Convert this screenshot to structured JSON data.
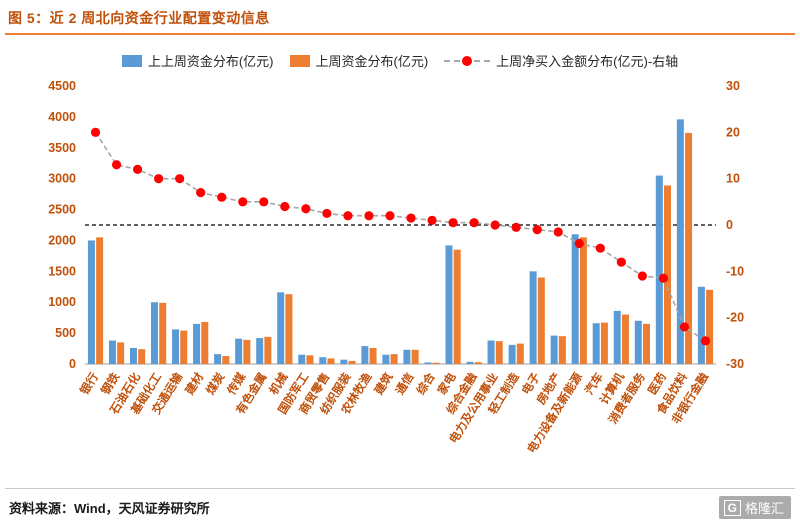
{
  "figure": {
    "title": "图 5：近 2 周北向资金行业配置变动信息",
    "source": "资料来源：Wind，天风证券研究所",
    "logo_text": "格隆汇",
    "logo_icon": "G"
  },
  "colors": {
    "title": "#C0500A",
    "rule": "#ED7D31",
    "bar_week_before_last": "#5B9BD5",
    "bar_last_week": "#ED7D31",
    "net_buy_marker": "#FF0000",
    "net_buy_line": "#A6A6A6",
    "axis_text": "#C0500A",
    "zero_line": "#000000"
  },
  "chart_data": {
    "type": "bar",
    "title": "近 2 周北向资金行业配置变动信息",
    "categories": [
      "银行",
      "钢铁",
      "石油石化",
      "基础化工",
      "交通运输",
      "建材",
      "煤炭",
      "传媒",
      "有色金属",
      "机械",
      "国防军工",
      "商贸零售",
      "纺织服装",
      "农林牧渔",
      "建筑",
      "通信",
      "综合",
      "家电",
      "综合金融",
      "电力及公用事业",
      "轻工制造",
      "电子",
      "房地产",
      "电力设备及新能源",
      "汽车",
      "计算机",
      "消费者服务",
      "医药",
      "食品饮料",
      "非银行金融"
    ],
    "series": [
      {
        "name": "上上周资金分布(亿元)",
        "type": "bar",
        "axis": "left",
        "color": "#5B9BD5",
        "values": [
          2000,
          380,
          260,
          1000,
          560,
          650,
          160,
          410,
          420,
          1160,
          150,
          110,
          70,
          290,
          150,
          230,
          25,
          1920,
          35,
          380,
          310,
          1500,
          460,
          2100,
          660,
          860,
          700,
          3050,
          3960,
          1250
        ]
      },
      {
        "name": "上周资金分布(亿元)",
        "type": "bar",
        "axis": "left",
        "color": "#ED7D31",
        "values": [
          2050,
          350,
          240,
          990,
          540,
          680,
          130,
          390,
          440,
          1130,
          140,
          90,
          50,
          260,
          160,
          230,
          20,
          1850,
          30,
          370,
          330,
          1400,
          450,
          2050,
          670,
          800,
          650,
          2890,
          3740,
          1200
        ]
      },
      {
        "name": "上周净买入金额分布(亿元)-右轴",
        "type": "line",
        "axis": "right",
        "marker_color": "#FF0000",
        "line_color": "#A6A6A6",
        "values": [
          20,
          13,
          12,
          10,
          10,
          7,
          6,
          5,
          5,
          4,
          3.5,
          2.5,
          2,
          2,
          2,
          1.5,
          1,
          0.5,
          0.5,
          0,
          -0.5,
          -1,
          -1.5,
          -4,
          -5,
          -8,
          -11,
          -11.5,
          -22,
          -25
        ]
      }
    ],
    "left_axis": {
      "min": 0,
      "max": 4500,
      "step": 500
    },
    "right_axis": {
      "min": -30,
      "max": 30,
      "step": 10
    },
    "zero_reference_line": true,
    "gridlines": false,
    "legend_position": "top"
  }
}
